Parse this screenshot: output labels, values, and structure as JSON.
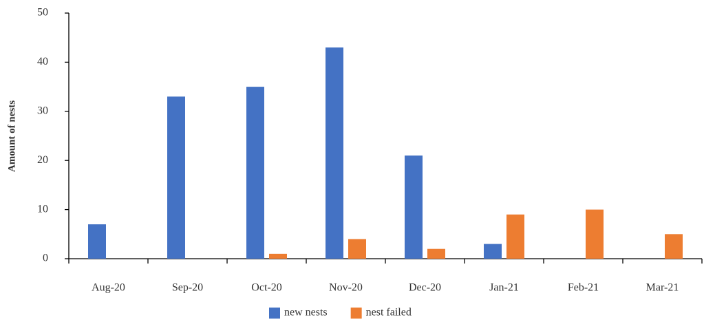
{
  "chart_data": {
    "type": "bar",
    "y_label": "Amount of nests",
    "categories": [
      "Aug-20",
      "Sep-20",
      "Oct-20",
      "Nov-20",
      "Dec-20",
      "Jan-21",
      "Feb-21",
      "Mar-21"
    ],
    "series": [
      {
        "name": "new nests",
        "color": "#4472c4",
        "values": [
          7,
          33,
          35,
          43,
          21,
          3,
          0,
          0
        ]
      },
      {
        "name": "nest failed",
        "color": "#ed7d31",
        "values": [
          0,
          0,
          1,
          4,
          2,
          9,
          10,
          5
        ]
      }
    ],
    "ylim": [
      0,
      50
    ],
    "yticks": [
      0,
      10,
      20,
      30,
      40,
      50
    ],
    "grid": false,
    "legend": "bottom"
  }
}
